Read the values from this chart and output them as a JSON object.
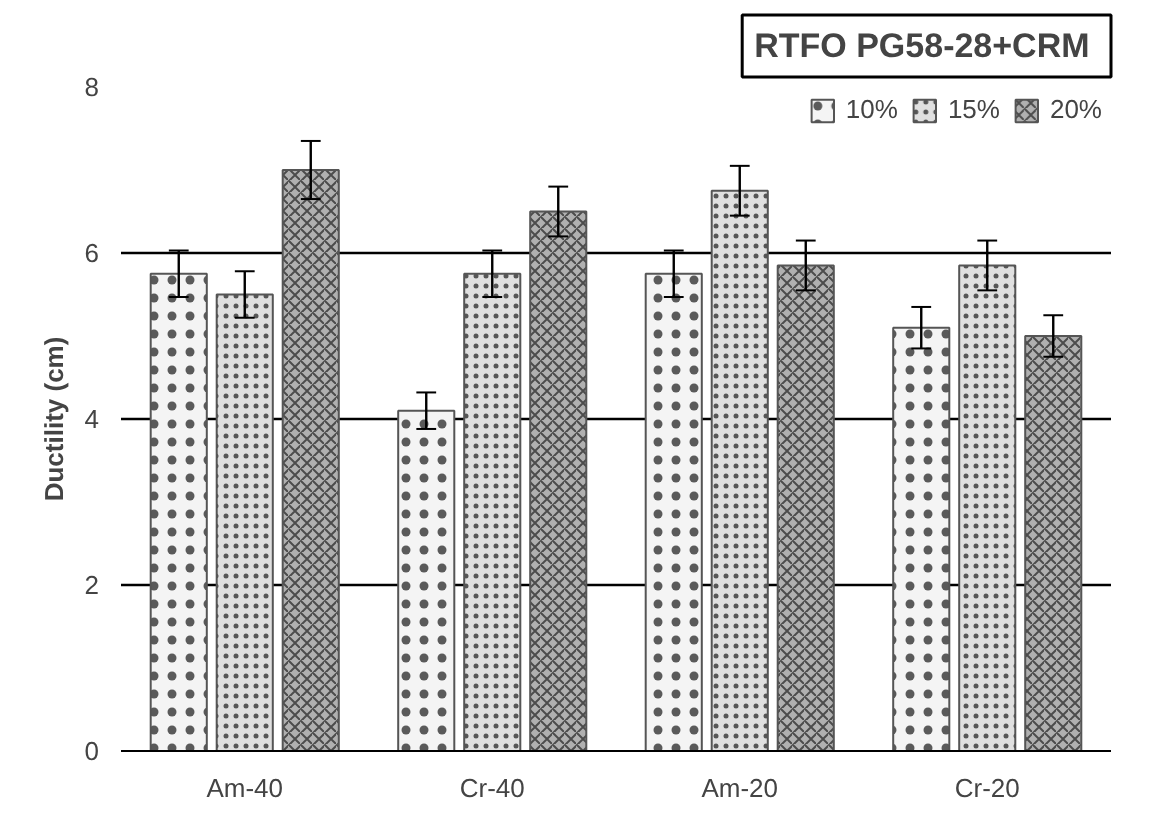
{
  "chart_data": {
    "type": "bar",
    "title": "RTFO  PG58-28+CRM",
    "ylabel": "Ductility (cm)",
    "categories": [
      "Am-40",
      "Cr-40",
      "Am-20",
      "Cr-20"
    ],
    "series": [
      {
        "name": "10%",
        "color": "#f4f4f4",
        "values": [
          5.75,
          4.1,
          5.75,
          5.1
        ],
        "errors": [
          0.28,
          0.22,
          0.28,
          0.25
        ]
      },
      {
        "name": "15%",
        "color": "#e0e0e0",
        "values": [
          5.5,
          5.75,
          6.75,
          5.85
        ],
        "errors": [
          0.28,
          0.28,
          0.3,
          0.3
        ]
      },
      {
        "name": "20%",
        "color": "#b0b0b0",
        "values": [
          7.0,
          6.5,
          5.85,
          5.0
        ],
        "errors": [
          0.35,
          0.3,
          0.3,
          0.25
        ]
      }
    ],
    "ylim": [
      0,
      8
    ],
    "yticks": [
      0,
      2,
      4,
      6,
      8
    ],
    "grid": "y",
    "legend": "top right"
  }
}
